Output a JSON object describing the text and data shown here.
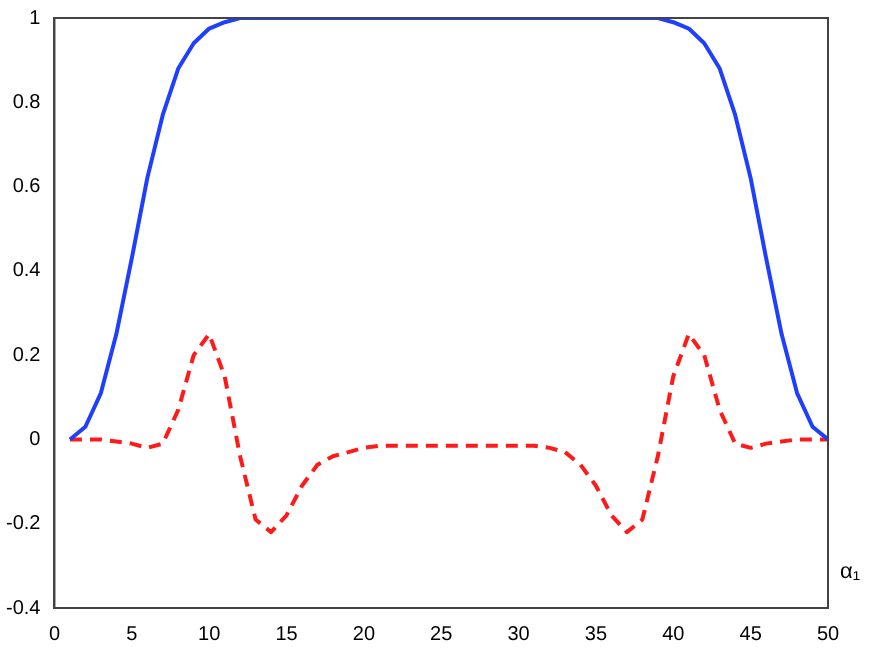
{
  "chart_data": {
    "type": "line",
    "xlabel": "α₁",
    "x": [
      1,
      2,
      3,
      4,
      5,
      6,
      7,
      8,
      9,
      10,
      11,
      12,
      13,
      14,
      15,
      16,
      17,
      18,
      19,
      20,
      21,
      22,
      23,
      24,
      25,
      26,
      27,
      28,
      29,
      30,
      31,
      32,
      33,
      34,
      35,
      36,
      37,
      38,
      39,
      40,
      41,
      42,
      43,
      44,
      45,
      46,
      47,
      48,
      49,
      50
    ],
    "series": [
      {
        "color": "#1f3fff",
        "line_style": "solid",
        "values": [
          0,
          0.03,
          0.11,
          0.25,
          0.43,
          0.62,
          0.77,
          0.88,
          0.94,
          0.975,
          0.99,
          1,
          1,
          1,
          1,
          1,
          1,
          1,
          1,
          1,
          1,
          1,
          1,
          1,
          1,
          1,
          1,
          1,
          1,
          1,
          1,
          1,
          1,
          1,
          1,
          1,
          1,
          1,
          1,
          0.99,
          0.975,
          0.94,
          0.88,
          0.77,
          0.62,
          0.43,
          0.25,
          0.11,
          0.03,
          0
        ]
      },
      {
        "color": "#ff1a1a",
        "line_style": "dashed",
        "values": [
          0,
          0,
          0,
          -0.005,
          -0.01,
          -0.02,
          -0.01,
          0.07,
          0.2,
          0.25,
          0.15,
          -0.04,
          -0.19,
          -0.22,
          -0.18,
          -0.11,
          -0.06,
          -0.04,
          -0.03,
          -0.02,
          -0.015,
          -0.015,
          -0.015,
          -0.015,
          -0.015,
          -0.015,
          -0.015,
          -0.015,
          -0.015,
          -0.015,
          -0.015,
          -0.02,
          -0.03,
          -0.06,
          -0.11,
          -0.18,
          -0.22,
          -0.19,
          -0.04,
          0.15,
          0.25,
          0.2,
          0.07,
          -0.01,
          -0.02,
          -0.01,
          -0.005,
          0,
          0,
          0
        ]
      }
    ],
    "xlim": [
      0,
      50
    ],
    "xticks": [
      0,
      5,
      10,
      15,
      20,
      25,
      30,
      35,
      40,
      45,
      50
    ],
    "ylim": [
      -0.4,
      1
    ],
    "yticks": [
      -0.4,
      -0.2,
      0,
      0.2,
      0.4,
      0.6,
      0.8,
      1
    ],
    "grid": false,
    "legend": false,
    "marker": "none"
  }
}
